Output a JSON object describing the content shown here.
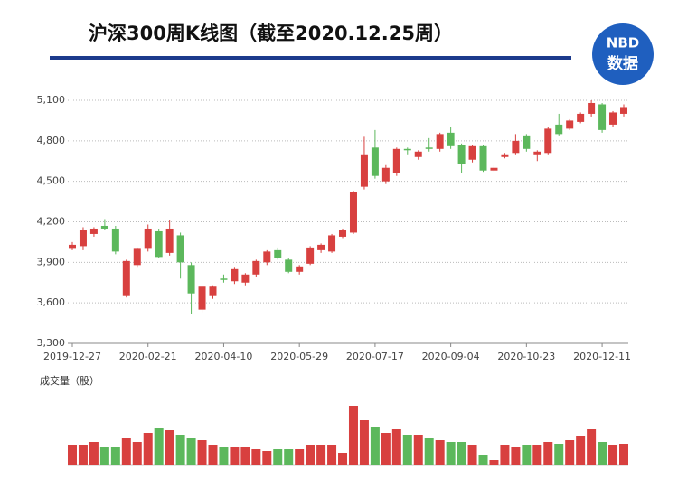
{
  "chart_data": {
    "type": "candlestick",
    "title": "沪深300周K线图（截至2020.12.25周）",
    "categories": [
      "2019-12-27",
      null,
      null,
      null,
      null,
      null,
      null,
      "2020-02-21",
      null,
      null,
      null,
      null,
      null,
      null,
      "2020-04-10",
      null,
      null,
      null,
      null,
      null,
      null,
      "2020-05-29",
      null,
      null,
      null,
      null,
      null,
      null,
      "2020-07-17",
      null,
      null,
      null,
      null,
      null,
      null,
      "2020-09-04",
      null,
      null,
      null,
      null,
      null,
      null,
      "2020-10-23",
      null,
      null,
      null,
      null,
      null,
      null,
      "2020-12-11",
      null,
      null
    ],
    "open": [
      4000,
      4020,
      4110,
      4170,
      4150,
      3650,
      3880,
      4000,
      4130,
      3970,
      4100,
      3880,
      3550,
      3650,
      3780,
      3760,
      3750,
      3810,
      3900,
      3990,
      3920,
      3830,
      3890,
      3990,
      3980,
      4090,
      4120,
      4460,
      4750,
      4500,
      4560,
      4740,
      4680,
      4750,
      4740,
      4860,
      4770,
      4660,
      4760,
      4580,
      4680,
      4710,
      4840,
      4700,
      4710,
      4920,
      4890,
      4940,
      5000,
      5070,
      4920,
      5000
    ],
    "high": [
      4050,
      4160,
      4160,
      4220,
      4170,
      3920,
      4010,
      4180,
      4150,
      4210,
      4120,
      3900,
      3730,
      3730,
      3810,
      3860,
      3820,
      3920,
      3990,
      4010,
      3930,
      3880,
      4020,
      4040,
      4110,
      4150,
      4430,
      4830,
      4880,
      4620,
      4750,
      4750,
      4730,
      4820,
      4860,
      4900,
      4780,
      4770,
      4770,
      4620,
      4710,
      4850,
      4850,
      4730,
      4900,
      5000,
      4960,
      5010,
      5100,
      5080,
      5020,
      5070
    ],
    "low": [
      3990,
      3990,
      4090,
      4140,
      3960,
      3640,
      3860,
      3980,
      3930,
      3950,
      3780,
      3520,
      3530,
      3630,
      3750,
      3740,
      3730,
      3790,
      3880,
      3920,
      3820,
      3810,
      3880,
      3970,
      3970,
      4080,
      4110,
      4440,
      4520,
      4480,
      4540,
      4700,
      4660,
      4720,
      4720,
      4740,
      4560,
      4640,
      4570,
      4570,
      4670,
      4700,
      4720,
      4650,
      4700,
      4840,
      4880,
      4930,
      4980,
      4860,
      4900,
      4980
    ],
    "close": [
      4030,
      4140,
      4150,
      4150,
      3980,
      3910,
      4000,
      4150,
      3940,
      4150,
      3900,
      3670,
      3720,
      3720,
      3770,
      3850,
      3810,
      3910,
      3980,
      3930,
      3830,
      3870,
      4010,
      4030,
      4100,
      4140,
      4420,
      4700,
      4540,
      4600,
      4740,
      4730,
      4720,
      4740,
      4850,
      4760,
      4630,
      4760,
      4580,
      4600,
      4700,
      4800,
      4740,
      4720,
      4890,
      4850,
      4950,
      5000,
      5080,
      4880,
      5010,
      5050
    ],
    "ylim": [
      3300,
      5100
    ],
    "yticks": [
      {
        "value": 3300,
        "label": "3,300"
      },
      {
        "value": 3600,
        "label": "3,600"
      },
      {
        "value": 3900,
        "label": "3,900"
      },
      {
        "value": 4200,
        "label": "4,200"
      },
      {
        "value": 4500,
        "label": "4,500"
      },
      {
        "value": 4800,
        "label": "4,800"
      },
      {
        "value": 5100,
        "label": "5,100"
      }
    ],
    "grid": true,
    "up_color": "#d8403f",
    "down_color": "#5cb85c",
    "volume": {
      "label": "成交量（股）",
      "ylim": [
        0,
        70
      ],
      "values": [
        22,
        22,
        26,
        20,
        20,
        30,
        26,
        36,
        41,
        39,
        34,
        30,
        28,
        22,
        20,
        20,
        20,
        18,
        16,
        18,
        18,
        18,
        22,
        22,
        22,
        14,
        66,
        50,
        42,
        36,
        40,
        34,
        34,
        30,
        28,
        26,
        26,
        22,
        12,
        6,
        22,
        20,
        22,
        22,
        26,
        24,
        28,
        32,
        40,
        26,
        22,
        24
      ]
    }
  },
  "logo": {
    "top": "NBD",
    "bottom": "数据"
  }
}
